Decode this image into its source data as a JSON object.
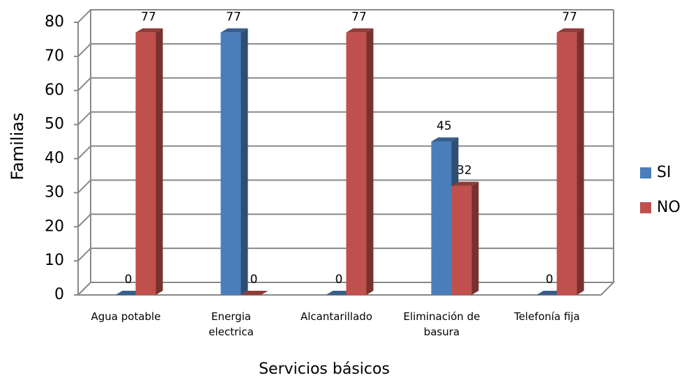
{
  "chart_data": {
    "type": "bar",
    "categories": [
      "Agua potable",
      "Energia electrica",
      "Alcantarillado",
      "Eliminación de basura",
      "Telefonía fija"
    ],
    "series": [
      {
        "name": "SI",
        "color": "#4a7ebb",
        "values": [
          0,
          77,
          0,
          45,
          0
        ]
      },
      {
        "name": "NO",
        "color": "#c0504d",
        "values": [
          77,
          0,
          77,
          32,
          77
        ]
      }
    ],
    "ylim": [
      0,
      80
    ],
    "yticks": [
      0,
      10,
      20,
      30,
      40,
      50,
      60,
      70,
      80
    ],
    "grid": true,
    "ylabel": "Familias",
    "xlabel": "Servicios básicos",
    "legend": "right"
  }
}
